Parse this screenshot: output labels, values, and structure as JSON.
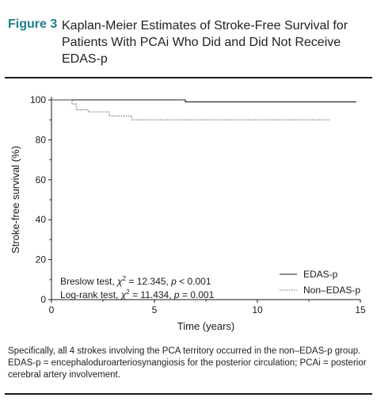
{
  "header": {
    "figure_label": "Figure 3",
    "title": "Kaplan-Meier Estimates of Stroke-Free Survival for Patients With PCAi Who Did and Did Not Receive EDAS-p"
  },
  "caption": "Specifically, all 4 strokes involving the PCA territory occurred in the non–EDAS-p group. EDAS-p = encephaloduroarteriosynangiosis for the posterior circulation; PCAi = posterior cerebral artery involvement.",
  "chart_data": {
    "type": "line",
    "title": "",
    "xlabel": "Time (years)",
    "ylabel": "Stroke-free survival (%)",
    "xlim": [
      0,
      15
    ],
    "ylim": [
      0,
      100
    ],
    "x_ticks": [
      0,
      5,
      10,
      15
    ],
    "y_ticks": [
      0,
      20,
      40,
      60,
      80,
      100
    ],
    "grid": false,
    "legend_position": "bottom-right",
    "series": [
      {
        "name": "EDAS-p",
        "style": "solid",
        "color": "#1a1a1a",
        "step": true,
        "x": [
          0,
          6.5,
          14.8
        ],
        "y": [
          100,
          99,
          99
        ]
      },
      {
        "name": "Non–EDAS-p",
        "style": "dotted",
        "color": "#666666",
        "step": true,
        "x": [
          0,
          1.0,
          1.2,
          1.8,
          2.8,
          3.9,
          13.5
        ],
        "y": [
          100,
          98,
          95,
          94,
          92,
          90,
          90
        ]
      }
    ],
    "annotations": [
      {
        "parts": [
          "Breslow test, ",
          "χ",
          "2",
          " = 12.345, ",
          "p",
          " < 0.001"
        ]
      },
      {
        "parts": [
          "Log-rank test, ",
          "χ",
          "2",
          " = 11.434, ",
          "p",
          " = 0.001"
        ]
      }
    ]
  }
}
